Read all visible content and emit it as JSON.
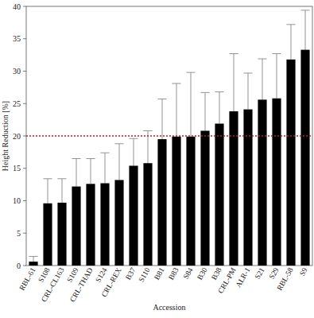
{
  "chart_data": {
    "type": "bar",
    "x_label": "Accession",
    "y_label": "Height Reduction [%]",
    "categories": [
      "RBL-61",
      "S108",
      "CRL-CL163",
      "S109",
      "CRL-THAD",
      "S124",
      "CRL-REX",
      "B37",
      "S110",
      "B81",
      "B83",
      "S84",
      "B30",
      "B38",
      "CRL-PM",
      "ALR-1",
      "S21",
      "S29",
      "RBL-58",
      "S9"
    ],
    "values": [
      0.6,
      9.6,
      9.7,
      12.2,
      12.6,
      12.7,
      13.2,
      15.4,
      15.8,
      19.5,
      19.9,
      19.9,
      20.8,
      21.9,
      23.8,
      24.1,
      25.6,
      25.8,
      31.8,
      33.3
    ],
    "errors": [
      0.8,
      3.8,
      3.7,
      4.3,
      3.9,
      4.7,
      5.6,
      4.2,
      5.0,
      6.2,
      8.2,
      9.9,
      5.9,
      4.9,
      8.9,
      5.6,
      6.3,
      6.9,
      5.4,
      6.1
    ],
    "threshold": 20,
    "color": "#000000",
    "ylim": [
      0,
      40
    ],
    "yticks": [
      0,
      5,
      10,
      15,
      20,
      25,
      30,
      35,
      40
    ],
    "grid": false
  }
}
